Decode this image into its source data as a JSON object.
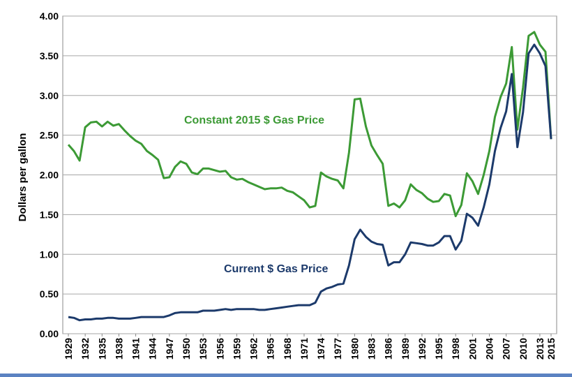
{
  "chart_data": {
    "type": "line",
    "title": "",
    "xlabel": "",
    "ylabel": "Dollars per gallon",
    "ylim": [
      0,
      4
    ],
    "yticks": [
      "0.00",
      "0.50",
      "1.00",
      "1.50",
      "2.00",
      "2.50",
      "3.00",
      "3.50",
      "4.00"
    ],
    "xticks": [
      "1929",
      "1932",
      "1935",
      "1938",
      "1941",
      "1944",
      "1947",
      "1950",
      "1953",
      "1956",
      "1959",
      "1962",
      "1965",
      "1968",
      "1971",
      "1974",
      "1977",
      "1980",
      "1983",
      "1986",
      "1989",
      "1992",
      "1995",
      "1998",
      "2001",
      "2004",
      "2007",
      "2010",
      "2013",
      "2015"
    ],
    "x": [
      1929,
      1930,
      1931,
      1932,
      1933,
      1934,
      1935,
      1936,
      1937,
      1938,
      1939,
      1940,
      1941,
      1942,
      1943,
      1944,
      1945,
      1946,
      1947,
      1948,
      1949,
      1950,
      1951,
      1952,
      1953,
      1954,
      1955,
      1956,
      1957,
      1958,
      1959,
      1960,
      1961,
      1962,
      1963,
      1964,
      1965,
      1966,
      1967,
      1968,
      1969,
      1970,
      1971,
      1972,
      1973,
      1974,
      1975,
      1976,
      1977,
      1978,
      1979,
      1980,
      1981,
      1982,
      1983,
      1984,
      1985,
      1986,
      1987,
      1988,
      1989,
      1990,
      1991,
      1992,
      1993,
      1994,
      1995,
      1996,
      1997,
      1998,
      1999,
      2000,
      2001,
      2002,
      2003,
      2004,
      2005,
      2006,
      2007,
      2008,
      2009,
      2010,
      2011,
      2012,
      2013,
      2014,
      2015
    ],
    "grid": true,
    "legend": "none",
    "series": [
      {
        "name": "Constant 2015 $ Gas Price",
        "color": "#3c9a35",
        "values": [
          2.38,
          2.3,
          2.18,
          2.6,
          2.66,
          2.67,
          2.61,
          2.67,
          2.62,
          2.64,
          2.56,
          2.49,
          2.43,
          2.39,
          2.3,
          2.25,
          2.19,
          1.96,
          1.97,
          2.1,
          2.17,
          2.14,
          2.03,
          2.01,
          2.08,
          2.08,
          2.06,
          2.04,
          2.05,
          1.97,
          1.94,
          1.95,
          1.91,
          1.88,
          1.85,
          1.82,
          1.83,
          1.83,
          1.84,
          1.8,
          1.78,
          1.73,
          1.68,
          1.59,
          1.61,
          2.03,
          1.98,
          1.95,
          1.93,
          1.83,
          2.28,
          2.95,
          2.96,
          2.61,
          2.37,
          2.25,
          2.14,
          1.61,
          1.64,
          1.59,
          1.68,
          1.88,
          1.81,
          1.77,
          1.7,
          1.66,
          1.67,
          1.76,
          1.74,
          1.48,
          1.62,
          2.02,
          1.92,
          1.76,
          2.0,
          2.3,
          2.73,
          2.98,
          3.15,
          3.61,
          2.57,
          3.1,
          3.75,
          3.8,
          3.64,
          3.55,
          2.45
        ]
      },
      {
        "name": "Current $ Gas Price",
        "color": "#1c3a6b",
        "values": [
          0.21,
          0.2,
          0.17,
          0.18,
          0.18,
          0.19,
          0.19,
          0.2,
          0.2,
          0.19,
          0.19,
          0.19,
          0.2,
          0.21,
          0.21,
          0.21,
          0.21,
          0.21,
          0.23,
          0.26,
          0.27,
          0.27,
          0.27,
          0.27,
          0.29,
          0.29,
          0.29,
          0.3,
          0.31,
          0.3,
          0.31,
          0.31,
          0.31,
          0.31,
          0.3,
          0.3,
          0.31,
          0.32,
          0.33,
          0.34,
          0.35,
          0.36,
          0.36,
          0.36,
          0.39,
          0.53,
          0.57,
          0.59,
          0.62,
          0.63,
          0.86,
          1.19,
          1.31,
          1.22,
          1.16,
          1.13,
          1.12,
          0.86,
          0.9,
          0.9,
          1.0,
          1.15,
          1.14,
          1.13,
          1.11,
          1.11,
          1.15,
          1.23,
          1.23,
          1.06,
          1.17,
          1.51,
          1.46,
          1.36,
          1.59,
          1.88,
          2.3,
          2.59,
          2.8,
          3.27,
          2.35,
          2.79,
          3.53,
          3.64,
          3.53,
          3.37,
          2.45
        ]
      }
    ],
    "annotations": [
      {
        "text": "Constant 2015 $ Gas Price",
        "series": 0
      },
      {
        "text": "Current $ Gas Price",
        "series": 1
      }
    ]
  }
}
